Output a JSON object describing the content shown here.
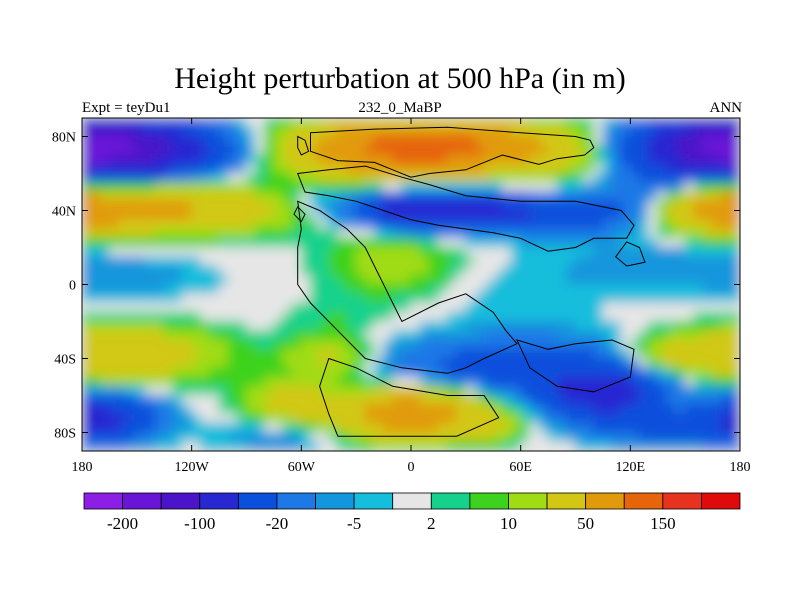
{
  "chart_data": {
    "type": "heatmap",
    "title": "Height perturbation at 500 hPa (in m)",
    "subtitle_left": "Expt = teyDu1",
    "subtitle_center": "232_0_MaBP",
    "subtitle_right": "ANN",
    "xlim": [
      -180,
      180
    ],
    "ylim": [
      -90,
      90
    ],
    "x_ticks": [
      {
        "value": -180,
        "label": "180"
      },
      {
        "value": -120,
        "label": "120W"
      },
      {
        "value": -60,
        "label": "60W"
      },
      {
        "value": 0,
        "label": "0"
      },
      {
        "value": 60,
        "label": "60E"
      },
      {
        "value": 120,
        "label": "120E"
      },
      {
        "value": 180,
        "label": "180"
      }
    ],
    "y_ticks": [
      {
        "value": 80,
        "label": "80N"
      },
      {
        "value": 40,
        "label": "40N"
      },
      {
        "value": 0,
        "label": "0"
      },
      {
        "value": -40,
        "label": "40S"
      },
      {
        "value": -80,
        "label": "80S"
      }
    ],
    "colorbar": {
      "levels": [
        -200,
        -150,
        -100,
        -50,
        -20,
        -10,
        -5,
        -2,
        2,
        5,
        10,
        20,
        50,
        100,
        150,
        200
      ],
      "colors": [
        "#8c1ee6",
        "#6a14d8",
        "#4b14c8",
        "#2828d2",
        "#0a50dc",
        "#1e78e6",
        "#1496dc",
        "#14bedc",
        "#e6e6e6",
        "#14d28c",
        "#3cd21e",
        "#a0dc14",
        "#d2c814",
        "#e19b0a",
        "#e6640a",
        "#e6321e",
        "#e10a0a"
      ],
      "labels": [
        {
          "index": 1,
          "label": "-200"
        },
        {
          "index": 3,
          "label": "-100"
        },
        {
          "index": 5,
          "label": "-20"
        },
        {
          "index": 7,
          "label": "-5"
        },
        {
          "index": 9,
          "label": "2"
        },
        {
          "index": 11,
          "label": "10"
        },
        {
          "index": 13,
          "label": "50"
        },
        {
          "index": 15,
          "label": "150"
        }
      ]
    }
  }
}
